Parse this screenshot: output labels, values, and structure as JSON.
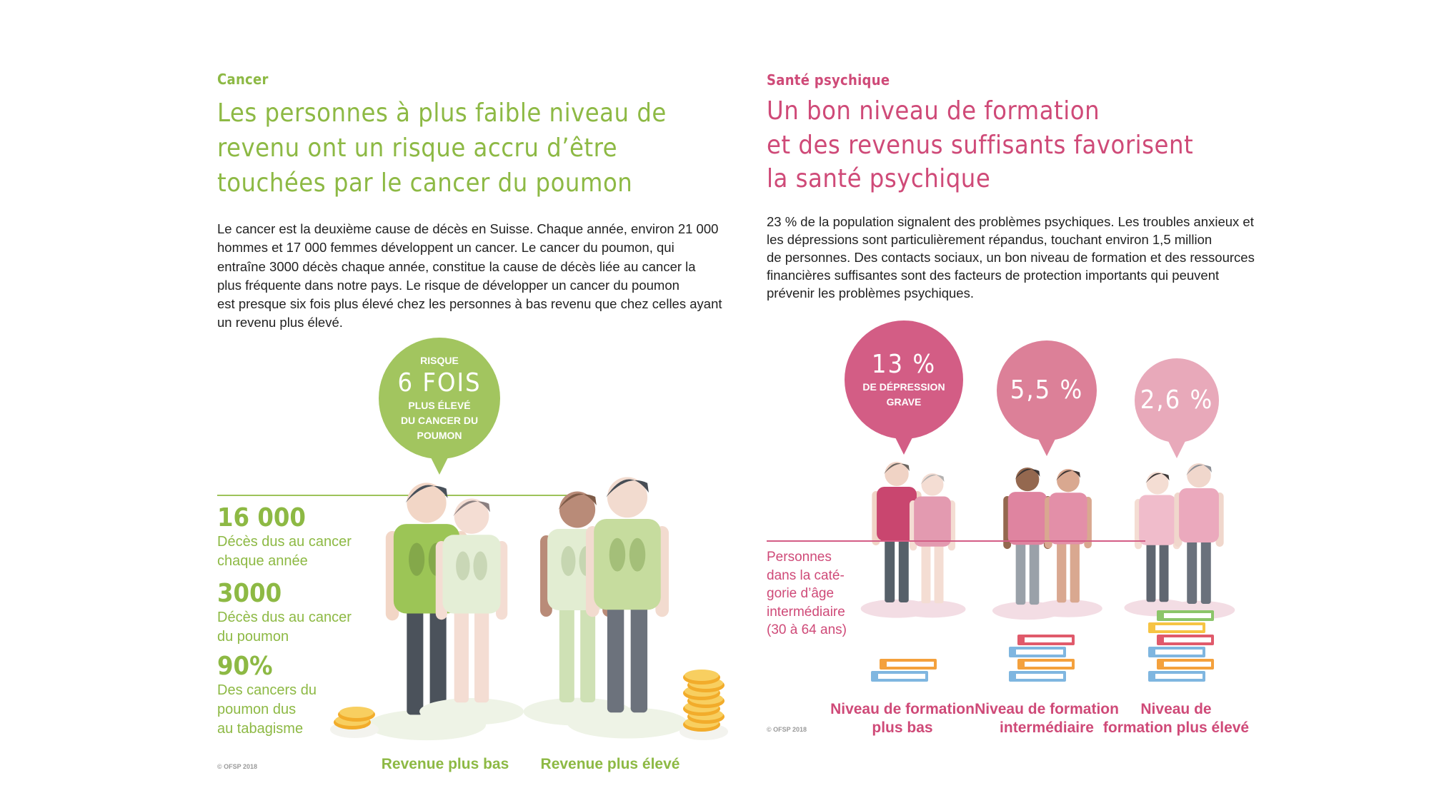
{
  "left": {
    "kicker": "Cancer",
    "title_lines": [
      "Les personnes à plus faible niveau de",
      "revenu ont un risque accru d’être",
      "touchées par le cancer du poumon"
    ],
    "body_lines": [
      "Le cancer est la deuxième cause de décès en Suisse. Chaque année, environ 21 000",
      "hommes et 17 000 femmes développent un cancer. Le cancer du poumon, qui",
      "entraîne 3000 décès chaque année, constitue la cause de décès liée au cancer la",
      "plus fréquente dans notre pays. Le risque de développer un cancer du poumon",
      "est presque six fois plus élevé chez les personnes à bas revenu que chez celles ayant",
      "un revenu plus élevé."
    ],
    "bubble": {
      "top": "RISQUE",
      "big": "6 FOIS",
      "lines": [
        "PLUS ÉLEVÉ",
        "DU CANCER DU",
        "POUMON"
      ]
    },
    "stats": [
      {
        "value": "16 000",
        "label_lines": [
          "Décès dus au cancer",
          "chaque année"
        ]
      },
      {
        "value": "3000",
        "label_lines": [
          "Décès dus au cancer",
          "du poumon"
        ]
      },
      {
        "value": "90%",
        "label_lines": [
          "Des cancers du",
          "poumon dus",
          "au tabagisme"
        ]
      }
    ],
    "captions": [
      "Revenue plus bas",
      "Revenue plus élevé"
    ],
    "copyright": "© OFSP 2018",
    "accent_color": "#8db944"
  },
  "right": {
    "kicker": "Santé psychique",
    "title_lines": [
      "Un bon niveau de formation",
      "et des revenus suffisants favorisent",
      "la santé psychique"
    ],
    "body_lines": [
      "23 % de la population signalent des problèmes psychiques. Les troubles anxieux et",
      "les dépressions sont particulièrement répandus, touchant environ 1,5 million",
      "de personnes. Des contacts sociaux, un bon niveau de formation et des ressources",
      "financières suffisantes sont des facteurs de protection importants qui peuvent",
      "prévenir les problèmes psychiques."
    ],
    "bubbles": [
      {
        "value": "13 %",
        "lines": [
          "DE DÉPRESSION",
          "GRAVE"
        ],
        "color": "#d35d85"
      },
      {
        "value": "5,5 %",
        "lines": [],
        "color": "#dc8098"
      },
      {
        "value": "2,6 %",
        "lines": [],
        "color": "#e8a9ba"
      }
    ],
    "personnes_lines": [
      "Personnes",
      "dans la caté-",
      "gorie d’âge",
      "intermédiaire",
      "(30 à 64 ans)"
    ],
    "captions": [
      [
        "Niveau de formation",
        "plus bas"
      ],
      [
        "Niveau de formation",
        "intermédiaire"
      ],
      [
        "Niveau de",
        "formation plus élevé"
      ]
    ],
    "copyright": "© OFSP 2018",
    "accent_color": "#cf4a78"
  }
}
